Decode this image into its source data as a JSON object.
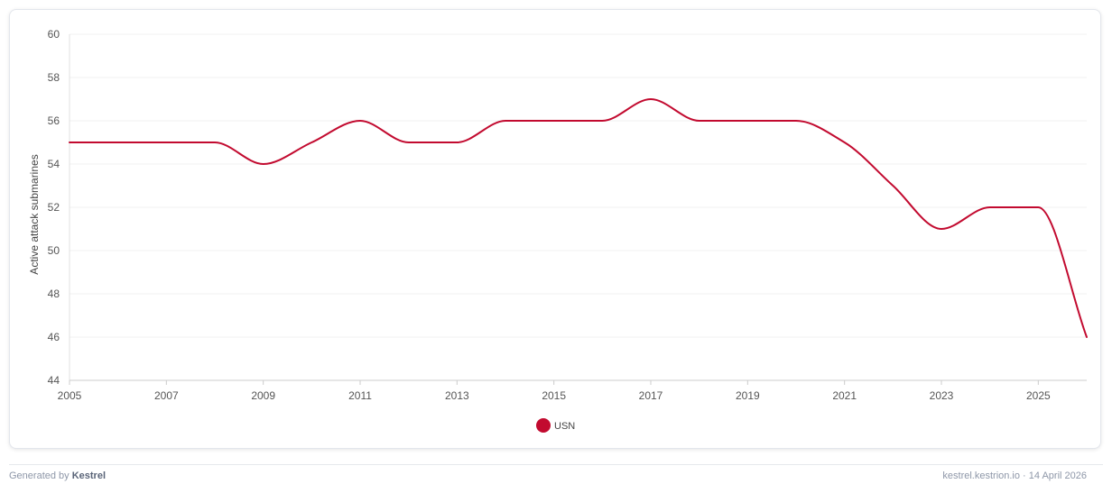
{
  "chart_data": {
    "type": "line",
    "ylabel": "Active attack submarines",
    "xlabel": "",
    "xlim": [
      2005,
      2026
    ],
    "ylim": [
      44,
      60
    ],
    "x_ticks": [
      "2005",
      "2007",
      "2009",
      "2011",
      "2013",
      "2015",
      "2017",
      "2019",
      "2021",
      "2023",
      "2025"
    ],
    "y_ticks": [
      "44",
      "46",
      "48",
      "50",
      "52",
      "54",
      "56",
      "58",
      "60"
    ],
    "grid": true,
    "legend_position": "bottom-center",
    "series": [
      {
        "name": "USN",
        "color": "#c20a2f",
        "x": [
          2005,
          2006,
          2007,
          2008,
          2009,
          2010,
          2011,
          2012,
          2013,
          2014,
          2015,
          2016,
          2017,
          2018,
          2019,
          2020,
          2021,
          2022,
          2023,
          2024,
          2025,
          2026
        ],
        "values": [
          55,
          55,
          55,
          55,
          54,
          55,
          56,
          55,
          55,
          56,
          56,
          56,
          57,
          56,
          56,
          56,
          55,
          53,
          51,
          52,
          52,
          46
        ]
      }
    ]
  },
  "footer": {
    "generated_prefix": "Generated by",
    "brand": "Kestrel",
    "source": "kestrel.kestrion.io · 14 April 2026"
  }
}
